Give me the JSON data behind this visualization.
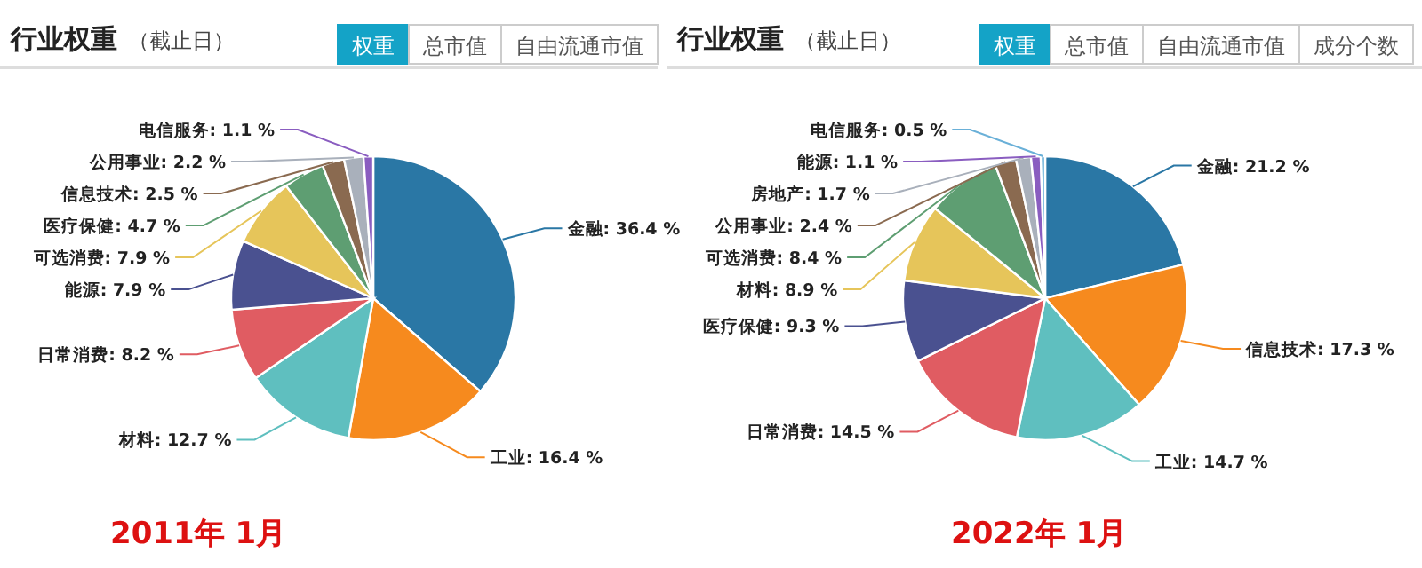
{
  "chart_data": [
    {
      "type": "pie",
      "title": "行业权重",
      "subtitle": "（截止日）",
      "categories": [
        "金融",
        "工业",
        "材料",
        "日常消费",
        "能源",
        "可选消费",
        "医疗保健",
        "信息技术",
        "公用事业",
        "电信服务"
      ],
      "values": [
        36.4,
        16.4,
        12.7,
        8.2,
        7.9,
        7.9,
        4.7,
        2.5,
        2.2,
        1.1
      ],
      "value_labels": [
        "36.4 %",
        "16.4 %",
        "12.7 %",
        "8.2 %",
        "7.9 %",
        "7.9 %",
        "4.7 %",
        "2.5 %",
        "2.2 %",
        "1.1 %"
      ],
      "colors": [
        "#2a77a5",
        "#f68a1e",
        "#5fbfbf",
        "#e05c62",
        "#4a5190",
        "#e6c55a",
        "#5e9e72",
        "#8a6a50",
        "#a9b0bb",
        "#8a5dc0"
      ],
      "annotations": [
        "2011年   1月",
        "权重",
        "总市值",
        "自由流通市值"
      ]
    },
    {
      "type": "pie",
      "title": "行业权重",
      "subtitle": "（截止日）",
      "categories": [
        "金融",
        "信息技术",
        "工业",
        "日常消费",
        "医疗保健",
        "材料",
        "可选消费",
        "公用事业",
        "房地产",
        "能源",
        "电信服务"
      ],
      "values": [
        21.2,
        17.3,
        14.7,
        14.5,
        9.3,
        8.9,
        8.4,
        2.4,
        1.7,
        1.1,
        0.5
      ],
      "value_labels": [
        "21.2 %",
        "17.3 %",
        "14.7 %",
        "14.5 %",
        "9.3 %",
        "8.9 %",
        "8.4 %",
        "2.4 %",
        "1.7 %",
        "1.1 %",
        "0.5 %"
      ],
      "colors": [
        "#2a77a5",
        "#f68a1e",
        "#5fbfbf",
        "#e05c62",
        "#4a5190",
        "#e6c55a",
        "#5e9e72",
        "#8a6a50",
        "#a9b0bb",
        "#8a5dc0",
        "#6ab0d8"
      ],
      "annotations": [
        "2022年  1月",
        "权重",
        "总市值",
        "自由流通市值",
        "成分个数"
      ]
    }
  ]
}
